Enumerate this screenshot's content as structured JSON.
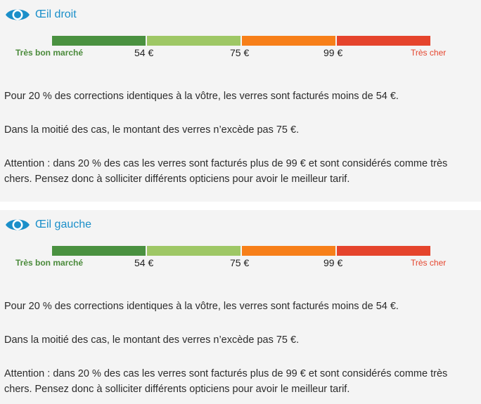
{
  "colors": {
    "title": "#1b8fc9",
    "segments": [
      "#4a9140",
      "#9ec765",
      "#f77f19",
      "#e5442c"
    ],
    "label_left": "#4a8a3a",
    "label_right": "#e5442c"
  },
  "icon": "eye-icon",
  "panels": [
    {
      "title": "Œil droit",
      "scale": {
        "left_label": "Très bon marché",
        "right_label": "Très cher",
        "prices": [
          "54 €",
          "75 €",
          "99 €"
        ]
      },
      "paragraphs": [
        "Pour 20 % des corrections identiques à la vôtre, les verres sont facturés moins de 54 €.",
        "Dans la moitié des cas, le montant des verres n’excède pas 75 €.",
        "Attention : dans 20 % des cas les verres sont facturés plus de 99 € et sont considérés comme très chers. Pensez donc à solliciter différents opticiens pour avoir le meilleur tarif."
      ]
    },
    {
      "title": "Œil gauche",
      "scale": {
        "left_label": "Très bon marché",
        "right_label": "Très cher",
        "prices": [
          "54 €",
          "75 €",
          "99 €"
        ]
      },
      "paragraphs": [
        "Pour 20 % des corrections identiques à la vôtre, les verres sont facturés moins de 54 €.",
        "Dans la moitié des cas, le montant des verres n’excède pas 75 €.",
        "Attention : dans 20 % des cas les verres sont facturés plus de 99 € et sont considérés comme très chers. Pensez donc à solliciter différents opticiens pour avoir le meilleur tarif."
      ]
    }
  ]
}
